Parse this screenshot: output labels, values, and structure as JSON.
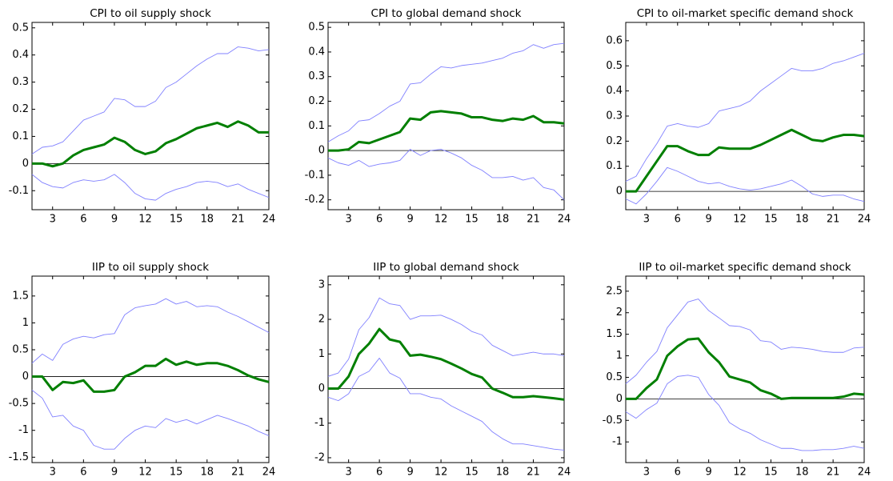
{
  "chart_data": [
    {
      "type": "line",
      "title": "CPI to oil supply shock",
      "x": [
        1,
        2,
        3,
        4,
        5,
        6,
        7,
        8,
        9,
        10,
        11,
        12,
        13,
        14,
        15,
        16,
        17,
        18,
        19,
        20,
        21,
        22,
        23,
        24
      ],
      "xlim": [
        1,
        24
      ],
      "xticks": [
        3,
        6,
        9,
        12,
        15,
        18,
        21,
        24
      ],
      "ylim": [
        -0.17,
        0.52
      ],
      "yticks": [
        -0.1,
        0,
        0.1,
        0.2,
        0.3,
        0.4,
        0.5
      ],
      "series": [
        {
          "color": "#8080ff",
          "values": [
            0.035,
            0.06,
            0.065,
            0.08,
            0.12,
            0.16,
            0.175,
            0.19,
            0.24,
            0.235,
            0.21,
            0.21,
            0.23,
            0.28,
            0.3,
            0.33,
            0.36,
            0.385,
            0.405,
            0.405,
            0.43,
            0.425,
            0.415,
            0.42
          ]
        },
        {
          "color": "#007f00",
          "values": [
            0,
            0,
            -0.01,
            0,
            0.03,
            0.05,
            0.06,
            0.07,
            0.095,
            0.08,
            0.05,
            0.035,
            0.045,
            0.075,
            0.09,
            0.11,
            0.13,
            0.14,
            0.15,
            0.135,
            0.155,
            0.14,
            0.115,
            0.115
          ]
        },
        {
          "color": "#8080ff",
          "values": [
            -0.04,
            -0.07,
            -0.085,
            -0.09,
            -0.07,
            -0.06,
            -0.065,
            -0.06,
            -0.04,
            -0.07,
            -0.11,
            -0.13,
            -0.135,
            -0.11,
            -0.095,
            -0.085,
            -0.07,
            -0.065,
            -0.07,
            -0.085,
            -0.075,
            -0.095,
            -0.11,
            -0.125
          ]
        }
      ]
    },
    {
      "type": "line",
      "title": "CPI to global demand shock",
      "x": [
        1,
        2,
        3,
        4,
        5,
        6,
        7,
        8,
        9,
        10,
        11,
        12,
        13,
        14,
        15,
        16,
        17,
        18,
        19,
        20,
        21,
        22,
        23,
        24
      ],
      "xlim": [
        1,
        24
      ],
      "xticks": [
        3,
        6,
        9,
        12,
        15,
        18,
        21,
        24
      ],
      "ylim": [
        -0.24,
        0.52
      ],
      "yticks": [
        -0.2,
        -0.1,
        0,
        0.1,
        0.2,
        0.3,
        0.4,
        0.5
      ],
      "series": [
        {
          "color": "#8080ff",
          "values": [
            0.035,
            0.06,
            0.08,
            0.12,
            0.125,
            0.15,
            0.18,
            0.2,
            0.27,
            0.275,
            0.31,
            0.34,
            0.335,
            0.345,
            0.35,
            0.355,
            0.365,
            0.375,
            0.395,
            0.405,
            0.43,
            0.415,
            0.43,
            0.435
          ]
        },
        {
          "color": "#007f00",
          "values": [
            0,
            0,
            0.005,
            0.035,
            0.03,
            0.045,
            0.06,
            0.075,
            0.13,
            0.125,
            0.155,
            0.16,
            0.155,
            0.15,
            0.135,
            0.135,
            0.125,
            0.12,
            0.13,
            0.125,
            0.14,
            0.115,
            0.115,
            0.11
          ]
        },
        {
          "color": "#8080ff",
          "values": [
            -0.03,
            -0.05,
            -0.06,
            -0.04,
            -0.065,
            -0.055,
            -0.05,
            -0.04,
            0.005,
            -0.02,
            0,
            0.005,
            -0.01,
            -0.03,
            -0.06,
            -0.08,
            -0.11,
            -0.11,
            -0.105,
            -0.12,
            -0.11,
            -0.15,
            -0.16,
            -0.2
          ]
        }
      ]
    },
    {
      "type": "line",
      "title": "CPI to oil-market specific demand shock",
      "x": [
        1,
        2,
        3,
        4,
        5,
        6,
        7,
        8,
        9,
        10,
        11,
        12,
        13,
        14,
        15,
        16,
        17,
        18,
        19,
        20,
        21,
        22,
        23,
        24
      ],
      "xlim": [
        1,
        24
      ],
      "xticks": [
        3,
        6,
        9,
        12,
        15,
        18,
        21,
        24
      ],
      "ylim": [
        -0.073,
        0.673
      ],
      "yticks": [
        0,
        0.1,
        0.2,
        0.3,
        0.4,
        0.5,
        0.6
      ],
      "series": [
        {
          "color": "#8080ff",
          "values": [
            0.04,
            0.06,
            0.13,
            0.19,
            0.26,
            0.27,
            0.26,
            0.255,
            0.27,
            0.32,
            0.33,
            0.34,
            0.36,
            0.4,
            0.43,
            0.46,
            0.49,
            0.48,
            0.48,
            0.49,
            0.51,
            0.52,
            0.535,
            0.55
          ]
        },
        {
          "color": "#007f00",
          "values": [
            0,
            0,
            0.06,
            0.12,
            0.18,
            0.18,
            0.16,
            0.145,
            0.145,
            0.175,
            0.17,
            0.17,
            0.17,
            0.185,
            0.205,
            0.225,
            0.245,
            0.225,
            0.205,
            0.2,
            0.215,
            0.225,
            0.225,
            0.22
          ]
        },
        {
          "color": "#8080ff",
          "values": [
            -0.03,
            -0.05,
            -0.01,
            0.04,
            0.095,
            0.08,
            0.06,
            0.04,
            0.03,
            0.035,
            0.02,
            0.01,
            0.005,
            0.01,
            0.02,
            0.03,
            0.045,
            0.02,
            -0.01,
            -0.02,
            -0.015,
            -0.015,
            -0.03,
            -0.04
          ]
        }
      ]
    },
    {
      "type": "line",
      "title": "IIP to oil supply shock",
      "x": [
        1,
        2,
        3,
        4,
        5,
        6,
        7,
        8,
        9,
        10,
        11,
        12,
        13,
        14,
        15,
        16,
        17,
        18,
        19,
        20,
        21,
        22,
        23,
        24
      ],
      "xlim": [
        1,
        24
      ],
      "xticks": [
        3,
        6,
        9,
        12,
        15,
        18,
        21,
        24
      ],
      "ylim": [
        -1.6,
        1.87
      ],
      "yticks": [
        -1.5,
        -1,
        -0.5,
        0,
        0.5,
        1,
        1.5
      ],
      "series": [
        {
          "color": "#8080ff",
          "values": [
            0.25,
            0.42,
            0.3,
            0.6,
            0.7,
            0.75,
            0.72,
            0.78,
            0.8,
            1.15,
            1.28,
            1.32,
            1.35,
            1.45,
            1.35,
            1.4,
            1.3,
            1.32,
            1.3,
            1.2,
            1.12,
            1.02,
            0.92,
            0.82
          ]
        },
        {
          "color": "#007f00",
          "values": [
            0,
            0,
            -0.25,
            -0.1,
            -0.12,
            -0.07,
            -0.28,
            -0.28,
            -0.25,
            0,
            0.08,
            0.2,
            0.2,
            0.33,
            0.22,
            0.28,
            0.22,
            0.25,
            0.25,
            0.2,
            0.12,
            0.02,
            -0.05,
            -0.1
          ]
        },
        {
          "color": "#8080ff",
          "values": [
            -0.25,
            -0.4,
            -0.75,
            -0.72,
            -0.92,
            -1,
            -1.28,
            -1.35,
            -1.35,
            -1.15,
            -1,
            -0.92,
            -0.95,
            -0.78,
            -0.85,
            -0.8,
            -0.88,
            -0.8,
            -0.72,
            -0.78,
            -0.85,
            -0.92,
            -1.02,
            -1.1
          ]
        }
      ]
    },
    {
      "type": "line",
      "title": "IIP to global demand shock",
      "x": [
        1,
        2,
        3,
        4,
        5,
        6,
        7,
        8,
        9,
        10,
        11,
        12,
        13,
        14,
        15,
        16,
        17,
        18,
        19,
        20,
        21,
        22,
        23,
        24
      ],
      "xlim": [
        1,
        24
      ],
      "xticks": [
        3,
        6,
        9,
        12,
        15,
        18,
        21,
        24
      ],
      "ylim": [
        -2.14,
        3.25
      ],
      "yticks": [
        -2,
        -1,
        0,
        1,
        2,
        3
      ],
      "series": [
        {
          "color": "#8080ff",
          "values": [
            0.35,
            0.45,
            0.85,
            1.7,
            2.05,
            2.62,
            2.45,
            2.4,
            2.0,
            2.1,
            2.1,
            2.12,
            2.0,
            1.85,
            1.65,
            1.55,
            1.25,
            1.1,
            0.95,
            1.0,
            1.05,
            1.0,
            1.0,
            0.95
          ]
        },
        {
          "color": "#007f00",
          "values": [
            0,
            0,
            0.35,
            1.0,
            1.3,
            1.72,
            1.42,
            1.35,
            0.95,
            0.98,
            0.92,
            0.85,
            0.72,
            0.58,
            0.42,
            0.32,
            0,
            -0.12,
            -0.25,
            -0.25,
            -0.22,
            -0.25,
            -0.28,
            -0.32
          ]
        },
        {
          "color": "#8080ff",
          "values": [
            -0.25,
            -0.35,
            -0.15,
            0.35,
            0.5,
            0.88,
            0.45,
            0.3,
            -0.15,
            -0.15,
            -0.25,
            -0.3,
            -0.5,
            -0.65,
            -0.8,
            -0.95,
            -1.25,
            -1.45,
            -1.6,
            -1.6,
            -1.65,
            -1.7,
            -1.75,
            -1.78
          ]
        }
      ]
    },
    {
      "type": "line",
      "title": "IIP to oil-market specific demand shock",
      "x": [
        1,
        2,
        3,
        4,
        5,
        6,
        7,
        8,
        9,
        10,
        11,
        12,
        13,
        14,
        15,
        16,
        17,
        18,
        19,
        20,
        21,
        22,
        23,
        24
      ],
      "xlim": [
        1,
        24
      ],
      "xticks": [
        3,
        6,
        9,
        12,
        15,
        18,
        21,
        24
      ],
      "ylim": [
        -1.48,
        2.85
      ],
      "yticks": [
        -1,
        -0.5,
        0,
        0.5,
        1,
        1.5,
        2,
        2.5
      ],
      "series": [
        {
          "color": "#8080ff",
          "values": [
            0.35,
            0.55,
            0.85,
            1.1,
            1.65,
            1.95,
            2.25,
            2.32,
            2.05,
            1.88,
            1.7,
            1.68,
            1.6,
            1.35,
            1.32,
            1.15,
            1.2,
            1.18,
            1.15,
            1.1,
            1.08,
            1.08,
            1.18,
            1.2
          ]
        },
        {
          "color": "#007f00",
          "values": [
            0,
            0,
            0.25,
            0.45,
            1.0,
            1.22,
            1.38,
            1.4,
            1.08,
            0.85,
            0.52,
            0.45,
            0.38,
            0.2,
            0.12,
            0,
            0.02,
            0.02,
            0.02,
            0.02,
            0.02,
            0.05,
            0.12,
            0.1
          ]
        },
        {
          "color": "#8080ff",
          "values": [
            -0.3,
            -0.45,
            -0.25,
            -0.1,
            0.35,
            0.52,
            0.55,
            0.5,
            0.1,
            -0.15,
            -0.55,
            -0.7,
            -0.8,
            -0.95,
            -1.05,
            -1.15,
            -1.15,
            -1.2,
            -1.2,
            -1.18,
            -1.18,
            -1.15,
            -1.1,
            -1.15
          ]
        }
      ]
    }
  ]
}
